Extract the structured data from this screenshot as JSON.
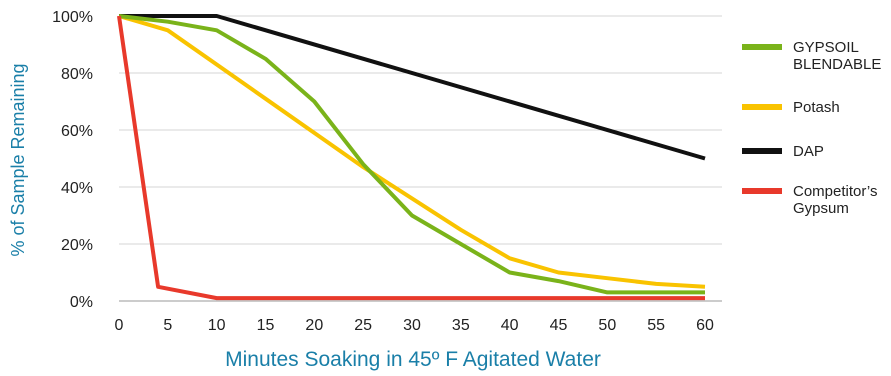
{
  "chart_data": {
    "type": "line",
    "title": "",
    "xlabel": "Minutes Soaking in 45º F Agitated Water",
    "ylabel": "% of Sample Remaining",
    "x": [
      0,
      5,
      10,
      15,
      20,
      25,
      30,
      35,
      40,
      45,
      50,
      55,
      60
    ],
    "x_tick_labels": [
      "0",
      "5",
      "10",
      "15",
      "20",
      "25",
      "30",
      "35",
      "40",
      "45",
      "50",
      "55",
      "60"
    ],
    "y_ticks": [
      0,
      20,
      40,
      60,
      80,
      100
    ],
    "y_tick_labels": [
      "0%",
      "20%",
      "40%",
      "60%",
      "80%",
      "100%"
    ],
    "xlim": [
      0,
      60
    ],
    "ylim": [
      0,
      100
    ],
    "grid": "horizontal",
    "legend_position": "right",
    "series": [
      {
        "name": "GYPSOIL BLENDABLE",
        "legend_lines": [
          "GYPSOIL",
          "BLENDABLE"
        ],
        "color": "#7ab31a",
        "points": [
          [
            0,
            100
          ],
          [
            5,
            98
          ],
          [
            10,
            95
          ],
          [
            15,
            85
          ],
          [
            20,
            70
          ],
          [
            25,
            48
          ],
          [
            30,
            30
          ],
          [
            35,
            20
          ],
          [
            40,
            10
          ],
          [
            45,
            7
          ],
          [
            50,
            3
          ],
          [
            55,
            3
          ],
          [
            60,
            3
          ]
        ]
      },
      {
        "name": "Potash",
        "legend_lines": [
          "Potash"
        ],
        "color": "#f9c300",
        "points": [
          [
            0,
            100
          ],
          [
            5,
            95
          ],
          [
            10,
            83
          ],
          [
            15,
            71
          ],
          [
            20,
            59
          ],
          [
            25,
            47
          ],
          [
            30,
            36
          ],
          [
            35,
            25
          ],
          [
            40,
            15
          ],
          [
            45,
            10
          ],
          [
            50,
            8
          ],
          [
            55,
            6
          ],
          [
            60,
            5
          ]
        ]
      },
      {
        "name": "DAP",
        "legend_lines": [
          "DAP"
        ],
        "color": "#111111",
        "points": [
          [
            0,
            100
          ],
          [
            5,
            100
          ],
          [
            10,
            100
          ],
          [
            60,
            50
          ]
        ]
      },
      {
        "name": "Competitor's Gypsum",
        "legend_lines": [
          "Competitor’s",
          "Gypsum"
        ],
        "color": "#e8392b",
        "points": [
          [
            0,
            100
          ],
          [
            4,
            5
          ],
          [
            10,
            1
          ],
          [
            60,
            1
          ]
        ]
      }
    ]
  }
}
